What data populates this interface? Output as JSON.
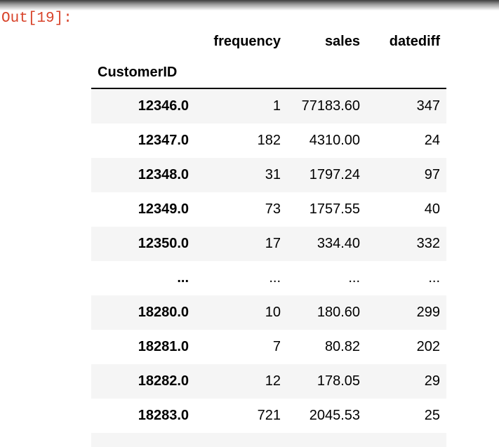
{
  "prompt": {
    "label": "Out[19]:",
    "color": "#d8432a"
  },
  "table": {
    "index_name": "CustomerID",
    "columns": [
      "frequency",
      "sales",
      "datediff"
    ],
    "rows": [
      {
        "index": "12346.0",
        "values": [
          "1",
          "77183.60",
          "347"
        ]
      },
      {
        "index": "12347.0",
        "values": [
          "182",
          "4310.00",
          "24"
        ]
      },
      {
        "index": "12348.0",
        "values": [
          "31",
          "1797.24",
          "97"
        ]
      },
      {
        "index": "12349.0",
        "values": [
          "73",
          "1757.55",
          "40"
        ]
      },
      {
        "index": "12350.0",
        "values": [
          "17",
          "334.40",
          "332"
        ]
      },
      {
        "index": "...",
        "values": [
          "...",
          "...",
          "..."
        ]
      },
      {
        "index": "18280.0",
        "values": [
          "10",
          "180.60",
          "299"
        ]
      },
      {
        "index": "18281.0",
        "values": [
          "7",
          "80.82",
          "202"
        ]
      },
      {
        "index": "18282.0",
        "values": [
          "12",
          "178.05",
          "29"
        ]
      },
      {
        "index": "18283.0",
        "values": [
          "721",
          "2045.53",
          "25"
        ]
      }
    ],
    "stripe_color": "#f5f5f5",
    "header_border_color": "#000000"
  }
}
